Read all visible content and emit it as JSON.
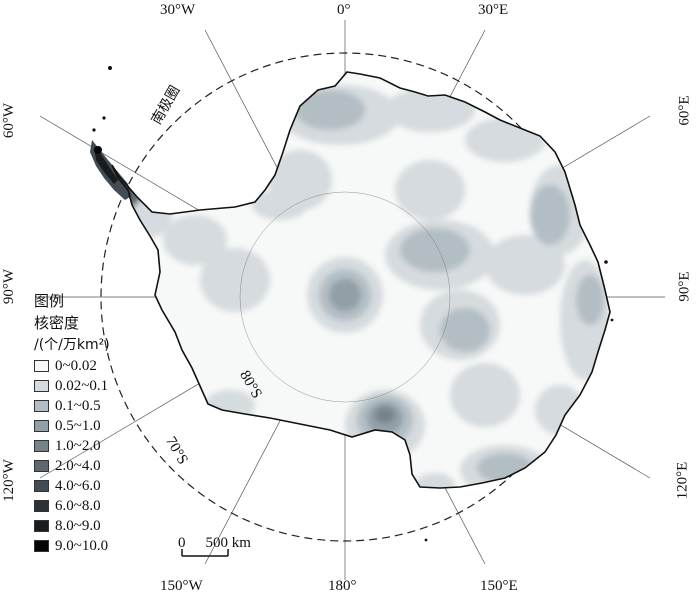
{
  "map": {
    "meridian_labels": {
      "w30": "30°W",
      "m0": "0°",
      "e30": "30°E",
      "w60": "60°W",
      "e60": "60°E",
      "w90": "90°W",
      "e90": "90°E",
      "w120": "120°W",
      "e120": "120°E",
      "w150": "150°W",
      "m180": "180°",
      "e150": "150°E"
    },
    "circle_labels": {
      "lat80": "80°S",
      "lat70": "70°S",
      "antarctic_circle": "南极圈"
    },
    "scale": {
      "zero": "0",
      "text": "500 km"
    }
  },
  "legend": {
    "title1": "图例",
    "title2": "核密度",
    "unit": "/(个/万km²)",
    "classes": [
      {
        "label": "0~0.02",
        "color": "#f7f8f8"
      },
      {
        "label": "0.02~0.1",
        "color": "#d5dbde"
      },
      {
        "label": "0.1~0.5",
        "color": "#b3bec4"
      },
      {
        "label": "0.5~1.0",
        "color": "#929fa7"
      },
      {
        "label": "1.0~2.0",
        "color": "#77838b"
      },
      {
        "label": "2.0~4.0",
        "color": "#5d6870"
      },
      {
        "label": "4.0~6.0",
        "color": "#434c53"
      },
      {
        "label": "6.0~8.0",
        "color": "#2c3338"
      },
      {
        "label": "8.0~9.0",
        "color": "#181c1f"
      },
      {
        "label": "9.0~10.0",
        "color": "#050607"
      }
    ]
  }
}
